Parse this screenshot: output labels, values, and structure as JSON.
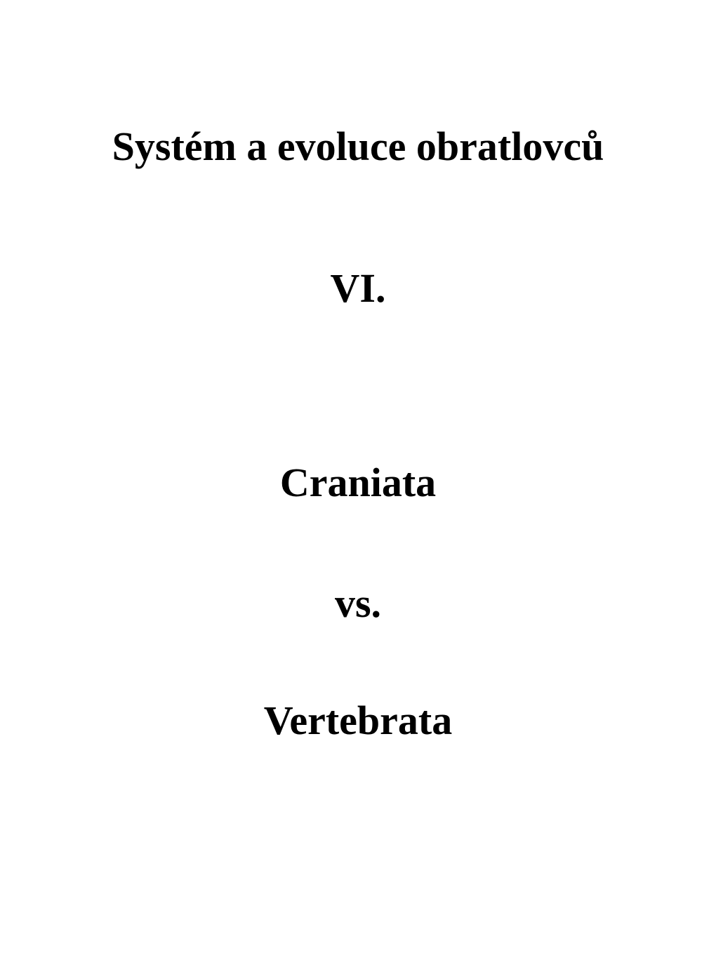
{
  "title": "Systém a evoluce obratlovců",
  "roman_numeral": "VI.",
  "subtitle_1": "Craniata",
  "subtitle_2": "vs.",
  "subtitle_3": "Vertebrata",
  "text_color": "#000000",
  "background_color": "#ffffff",
  "font_family": "Comic Sans MS",
  "title_fontsize": 58,
  "subtitle_fontsize": 58
}
